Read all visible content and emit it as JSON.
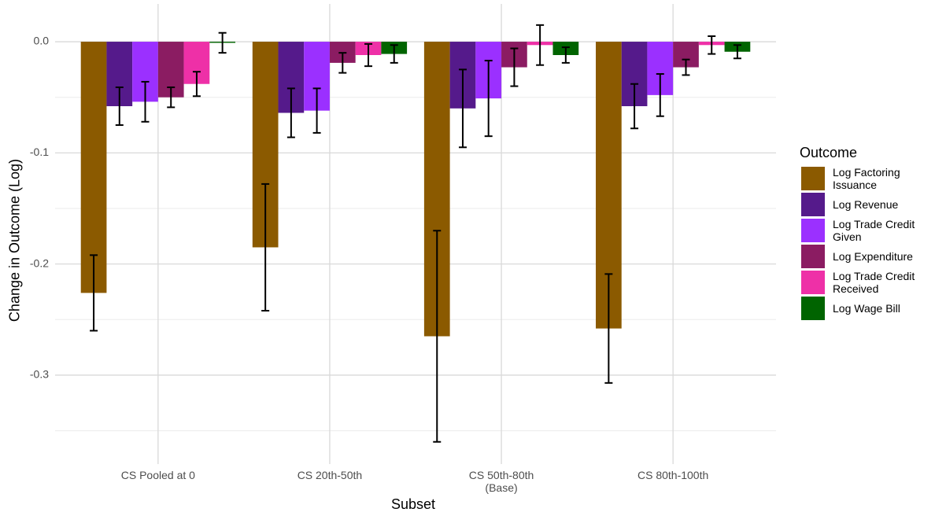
{
  "chart_data": {
    "type": "bar",
    "x_label": "Subset",
    "y_label": "Change in Outcome (Log)",
    "legend_title": "Outcome",
    "categories": [
      "CS Pooled at 0",
      "CS 20th-50th",
      "CS 50th-80th\n(Base)",
      "CS 80th-100th"
    ],
    "series": [
      {
        "name": "Log Factoring Issuance",
        "color": "#8b5a00",
        "values": [
          -0.226,
          -0.185,
          -0.265,
          -0.258
        ],
        "errors": [
          0.034,
          0.057,
          0.095,
          0.049
        ]
      },
      {
        "name": "Log Revenue",
        "color": "#551a8b",
        "values": [
          -0.058,
          -0.064,
          -0.06,
          -0.058
        ],
        "errors": [
          0.017,
          0.022,
          0.035,
          0.02
        ]
      },
      {
        "name": "Log Trade Credit Given",
        "color": "#9b30ff",
        "values": [
          -0.054,
          -0.062,
          -0.051,
          -0.048
        ],
        "errors": [
          0.018,
          0.02,
          0.034,
          0.019
        ]
      },
      {
        "name": "Log Expenditure",
        "color": "#8b1c62",
        "values": [
          -0.05,
          -0.019,
          -0.023,
          -0.023
        ],
        "errors": [
          0.009,
          0.009,
          0.017,
          0.007
        ]
      },
      {
        "name": "Log Trade Credit Received",
        "color": "#ee30a7",
        "values": [
          -0.038,
          -0.012,
          -0.003,
          -0.003
        ],
        "errors": [
          0.011,
          0.01,
          0.018,
          0.008
        ]
      },
      {
        "name": "Log Wage Bill",
        "color": "#006400",
        "values": [
          -0.001,
          -0.011,
          -0.012,
          -0.009
        ],
        "errors": [
          0.009,
          0.008,
          0.007,
          0.006
        ]
      }
    ],
    "ylim": [
      -0.38,
      0.034
    ],
    "yticks": [
      {
        "value": 0,
        "label": "0.0"
      },
      -0.1,
      -0.2,
      -0.3
    ],
    "grid": true,
    "minor_grid": true,
    "legend_position": "right"
  }
}
